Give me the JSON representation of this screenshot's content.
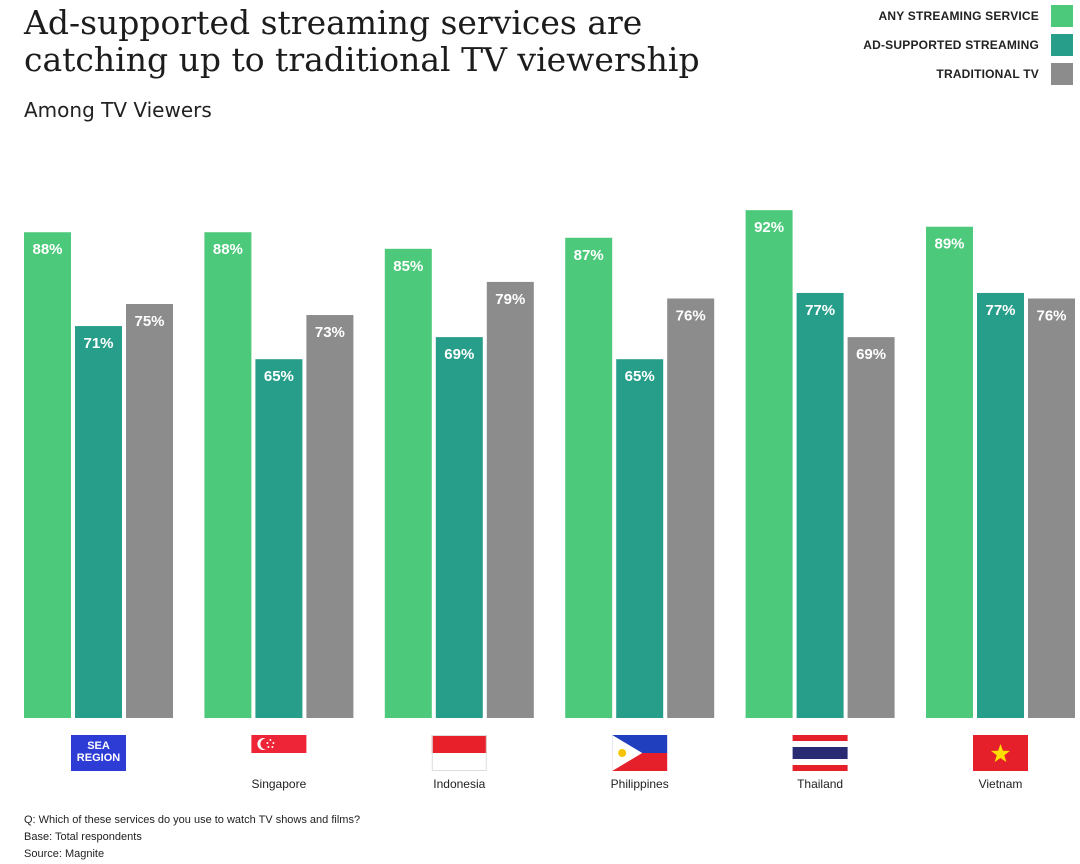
{
  "title": "Ad-supported streaming services are catching up to traditional TV viewership",
  "subtitle": "Among TV Viewers",
  "legend": [
    {
      "label": "ANY STREAMING SERVICE",
      "color": "#4cc97a"
    },
    {
      "label": "AD-SUPPORTED STREAMING",
      "color": "#279e8a"
    },
    {
      "label": "TRADITIONAL TV",
      "color": "#8c8c8c"
    }
  ],
  "chart_data": {
    "type": "bar",
    "categories": [
      "SEA REGION",
      "Singapore",
      "Indonesia",
      "Philippines",
      "Thailand",
      "Vietnam"
    ],
    "category_flags": [
      "sea-region-badge",
      "singapore-flag",
      "indonesia-flag",
      "philippines-flag",
      "thailand-flag",
      "vietnam-flag"
    ],
    "series": [
      {
        "name": "ANY STREAMING SERVICE",
        "color": "#4cc97a",
        "values": [
          88,
          88,
          85,
          87,
          92,
          89
        ]
      },
      {
        "name": "AD-SUPPORTED STREAMING",
        "color": "#279e8a",
        "values": [
          71,
          65,
          69,
          65,
          77,
          77
        ]
      },
      {
        "name": "TRADITIONAL TV",
        "color": "#8c8c8c",
        "values": [
          75,
          73,
          79,
          76,
          69,
          76
        ]
      }
    ],
    "value_suffix": "%",
    "ylim": [
      0,
      100
    ],
    "grid": false
  },
  "footnotes": {
    "question": "Q: Which of these services do you use to watch TV shows and films?",
    "base": "Base: Total respondents",
    "source": "Source: Magnite"
  }
}
